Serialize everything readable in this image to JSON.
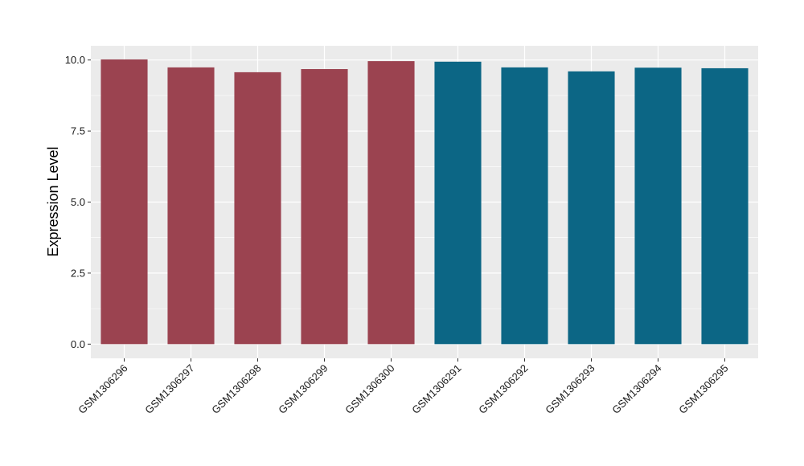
{
  "chart_data": {
    "type": "bar",
    "title": "",
    "xlabel": "",
    "ylabel": "Expression Level",
    "categories": [
      "GSM1306296",
      "GSM1306297",
      "GSM1306298",
      "GSM1306299",
      "GSM1306300",
      "GSM1306291",
      "GSM1306292",
      "GSM1306293",
      "GSM1306294",
      "GSM1306295"
    ],
    "values": [
      10.02,
      9.74,
      9.57,
      9.68,
      9.96,
      9.94,
      9.74,
      9.6,
      9.73,
      9.71
    ],
    "bar_colors": [
      "#9b4350",
      "#9b4350",
      "#9b4350",
      "#9b4350",
      "#9b4350",
      "#0c6685",
      "#0c6685",
      "#0c6685",
      "#0c6685",
      "#0c6685"
    ],
    "y_ticks": [
      0,
      2.5,
      5,
      7.5,
      10
    ],
    "y_tick_labels": [
      "0.0",
      "2.5",
      "5.0",
      "7.5",
      "10.0"
    ],
    "ylim": [
      -0.5,
      10.5
    ],
    "grid": true,
    "legend": "none",
    "panel_background": "#ebebeb",
    "grid_color": "#ffffff"
  }
}
